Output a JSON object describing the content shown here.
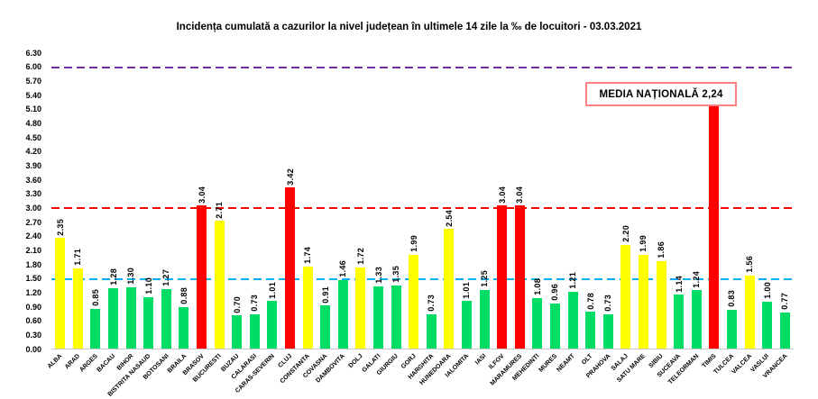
{
  "annotation": {
    "label": "MEDIA NAȚIONALĂ 2,24",
    "border_color": "#FF8080"
  },
  "chart_data": {
    "type": "bar",
    "title": "Incidența cumulată a cazurilor la nivel județean în ultimele 14 zile la ‰ de locuitori - 03.03.2021",
    "xlabel": "",
    "ylabel": "",
    "ylim": [
      0,
      6.3
    ],
    "ytick_step": 0.3,
    "grid": false,
    "legend": "none",
    "categories": [
      "ALBA",
      "ARAD",
      "ARGES",
      "BACAU",
      "BIHOR",
      "BISTRITA NASAUD",
      "BOTOSANI",
      "BRAILA",
      "BRASOV",
      "BUCURESTI",
      "BUZAU",
      "CALARASI",
      "CARAS-SEVERIN",
      "CLUJ",
      "CONSTANTA",
      "COVASNA",
      "DAMBOVITA",
      "DOLJ",
      "GALATI",
      "GIURGIU",
      "GORJ",
      "HARGHITA",
      "HUNEDOARA",
      "IALOMITA",
      "IASI",
      "ILFOV",
      "MARAMURES",
      "MEHEDINTI",
      "MURES",
      "NEAMT",
      "OLT",
      "PRAHOVA",
      "SALAJ",
      "SATU MARE",
      "SIBIU",
      "SUCEAVA",
      "TELEORMAN",
      "TIMIS",
      "TULCEA",
      "VALCEA",
      "VASLUI",
      "VRANCEA"
    ],
    "values": [
      2.35,
      1.71,
      0.85,
      1.28,
      1.3,
      1.1,
      1.27,
      0.88,
      3.04,
      2.71,
      0.7,
      0.73,
      1.01,
      3.42,
      1.74,
      0.91,
      1.46,
      1.72,
      1.33,
      1.35,
      1.99,
      0.73,
      2.54,
      1.01,
      1.25,
      3.04,
      3.04,
      1.08,
      0.96,
      1.21,
      0.78,
      0.73,
      2.2,
      1.99,
      1.86,
      1.14,
      1.24,
      5.24,
      0.83,
      1.56,
      1.0,
      0.77
    ],
    "bar_colors": [
      "yellow",
      "yellow",
      "green",
      "green",
      "green",
      "green",
      "green",
      "green",
      "red",
      "yellow",
      "green",
      "green",
      "green",
      "red",
      "yellow",
      "green",
      "green",
      "yellow",
      "green",
      "green",
      "yellow",
      "green",
      "yellow",
      "green",
      "green",
      "red",
      "red",
      "green",
      "green",
      "green",
      "green",
      "green",
      "yellow",
      "yellow",
      "yellow",
      "green",
      "green",
      "red",
      "green",
      "yellow",
      "green",
      "green"
    ],
    "palette": {
      "green": "#00DC64",
      "yellow": "#FFFF00",
      "red": "#FF0000"
    },
    "reference_lines": [
      {
        "value": 1.5,
        "color": "#00B0F0",
        "style": "dashed"
      },
      {
        "value": 3.0,
        "color": "#FF0000",
        "style": "dashed"
      },
      {
        "value": 6.0,
        "color": "#7030A0",
        "style": "dashed"
      }
    ],
    "national_average": "2,24"
  }
}
